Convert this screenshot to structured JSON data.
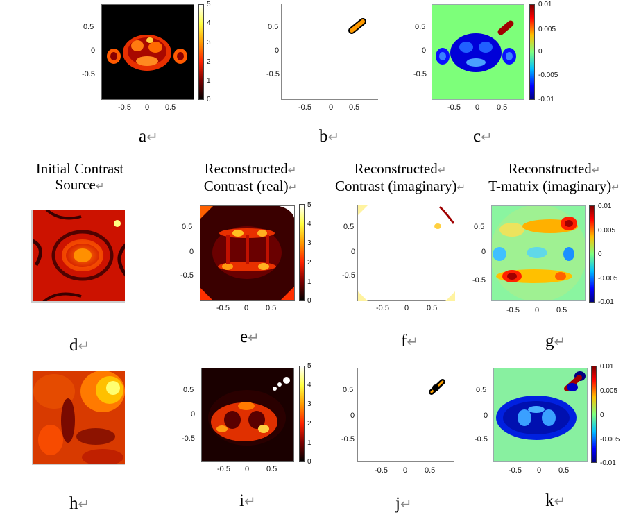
{
  "figure": {
    "row_titles": [
      {
        "id": "d",
        "line1": "Initial Contrast",
        "line2": "Source"
      },
      {
        "id": "e",
        "line1": "Reconstructed",
        "line2": "Contrast (real)"
      },
      {
        "id": "f",
        "line1": "Reconstructed",
        "line2": "Contrast (imaginary)"
      },
      {
        "id": "g",
        "line1": "Reconstructed",
        "line2": "T-matrix (imaginary)"
      }
    ],
    "panel_labels": [
      "a",
      "b",
      "c",
      "d",
      "e",
      "f",
      "g",
      "h",
      "i",
      "j",
      "k"
    ],
    "return_mark": "↵",
    "axis_ticks": {
      "y": [
        "0.5",
        "0",
        "-0.5"
      ],
      "x": [
        "-0.5",
        "0",
        "0.5"
      ]
    },
    "colorbar_real": [
      "5",
      "4",
      "3",
      "2",
      "1",
      "0"
    ],
    "colorbar_imag": [
      "0.01",
      "0.005",
      "0",
      "-0.005",
      "-0.01"
    ],
    "colormaps": {
      "hot": [
        "#000000",
        "#7a0000",
        "#ff2200",
        "#ff9a00",
        "#ffff40",
        "#ffffff"
      ],
      "jet": [
        "#00007f",
        "#0000ff",
        "#00bfff",
        "#7fff7f",
        "#ffbf00",
        "#ff0000",
        "#7f0000"
      ]
    }
  }
}
